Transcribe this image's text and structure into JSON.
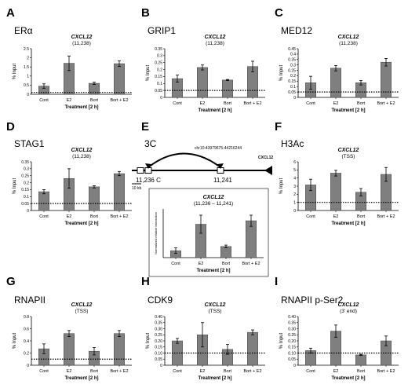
{
  "panels": [
    {
      "letter": "A",
      "name": "ERα"
    },
    {
      "letter": "B",
      "name": "GRIP1"
    },
    {
      "letter": "C",
      "name": "MED12"
    },
    {
      "letter": "D",
      "name": "STAG1"
    },
    {
      "letter": "E",
      "name": "3C"
    },
    {
      "letter": "F",
      "name": "H3Ac"
    },
    {
      "letter": "G",
      "name": "RNAPII"
    },
    {
      "letter": "H",
      "name": "CDK9"
    },
    {
      "letter": "I",
      "name": "RNAPII p-Ser2"
    }
  ],
  "locus": {
    "coord": "chr10:43979675-44216244",
    "gene": "CXCL12",
    "left_label": "11,236 C",
    "right_label": "11,241",
    "scale": "10 kb"
  },
  "chart_data": [
    {
      "panel": "A",
      "type": "bar",
      "title": "CXCL12",
      "subtitle": "(11,238)",
      "ylabel": "% Input",
      "xlabel": "Treatment [2 h]",
      "categories": [
        "Cont",
        "E2",
        "Bort",
        "Bort + E2"
      ],
      "values": [
        0.45,
        1.7,
        0.6,
        1.68
      ],
      "errors": [
        0.12,
        0.4,
        0.06,
        0.15
      ],
      "ylim": [
        0,
        2.5
      ],
      "yticks": [
        "0",
        "0.5",
        "1",
        "1.5",
        "2",
        "2.5"
      ],
      "baseline": 0.1,
      "show_ticks": false
    },
    {
      "panel": "B",
      "type": "bar",
      "title": "CXCL12",
      "subtitle": "(11,238)",
      "ylabel": "% Input",
      "xlabel": "Treatment [2 h]",
      "categories": [
        "Cont",
        "E2",
        "Bort",
        "Bort + E2"
      ],
      "values": [
        0.135,
        0.215,
        0.125,
        0.222
      ],
      "errors": [
        0.025,
        0.018,
        0.004,
        0.038
      ],
      "ylim": [
        0,
        0.35
      ],
      "yticks": [
        "0",
        "0.05",
        "0.1",
        "0.15",
        "0.2",
        "0.25",
        "0.3",
        "0.35"
      ],
      "baseline": 0.05,
      "show_ticks": true
    },
    {
      "panel": "C",
      "type": "bar",
      "title": "CXCL12",
      "subtitle": "(11,238)",
      "ylabel": "% Input",
      "xlabel": "Treatment [2 h]",
      "categories": [
        "Cont",
        "E2",
        "Bort",
        "Bort + E2"
      ],
      "values": [
        0.135,
        0.27,
        0.135,
        0.325
      ],
      "errors": [
        0.06,
        0.025,
        0.02,
        0.035
      ],
      "ylim": [
        0,
        0.45
      ],
      "yticks": [
        "0",
        "0.05",
        "0.1",
        "0.15",
        "0.2",
        "0.25",
        "0.3",
        "0.35",
        "0.4",
        "0.45"
      ],
      "baseline": 0.05,
      "show_ticks": true
    },
    {
      "panel": "D",
      "type": "bar",
      "title": "CXCL12",
      "subtitle": "(11,238)",
      "ylabel": "% Input",
      "xlabel": "Treatment [2 h]",
      "categories": [
        "Cont",
        "E2",
        "Bort",
        "Bort + E2"
      ],
      "values": [
        0.135,
        0.23,
        0.17,
        0.265
      ],
      "errors": [
        0.015,
        0.07,
        0.008,
        0.015
      ],
      "ylim": [
        0,
        0.35
      ],
      "yticks": [
        "0",
        "0.05",
        "0.1",
        "0.15",
        "0.2",
        "0.25",
        "0.3",
        "0.35"
      ],
      "baseline": 0.05,
      "show_ticks": true
    },
    {
      "panel": "E",
      "type": "bar",
      "title": "CXCL12",
      "subtitle": "(11,236 – 11,241)",
      "ylabel": "Normalized relative interaction",
      "xlabel": "Treatment [2 h]",
      "categories": [
        "Cont",
        "E2",
        "Bort",
        "Bort + E2"
      ],
      "values": [
        1.0,
        4.8,
        1.6,
        5.3
      ],
      "errors": [
        0.4,
        1.3,
        0.2,
        0.8
      ],
      "ylim": [
        0,
        7
      ],
      "yticks": [],
      "baseline": null,
      "show_ticks": false
    },
    {
      "panel": "F",
      "type": "bar",
      "title": "CXCL12",
      "subtitle": "(TSS)",
      "ylabel": "% Input",
      "xlabel": "Treatment [2 h]",
      "categories": [
        "Cont",
        "E2",
        "Bort",
        "Bort + E2"
      ],
      "values": [
        3.15,
        4.6,
        2.25,
        4.45
      ],
      "errors": [
        0.7,
        0.35,
        0.45,
        0.85
      ],
      "ylim": [
        0,
        6
      ],
      "yticks": [
        "0",
        "1",
        "2",
        "3",
        "4",
        "5",
        "6"
      ],
      "baseline": 1,
      "show_ticks": true
    },
    {
      "panel": "G",
      "type": "bar",
      "title": "CXCL12",
      "subtitle": "(TSS)",
      "ylabel": "% Input",
      "xlabel": "Treatment [2 h]",
      "categories": [
        "Cont",
        "E2",
        "Bort",
        "Bort + E2"
      ],
      "values": [
        0.27,
        0.52,
        0.23,
        0.52
      ],
      "errors": [
        0.08,
        0.05,
        0.06,
        0.05
      ],
      "ylim": [
        0,
        0.8
      ],
      "yticks": [
        "0",
        "0.2",
        "0.4",
        "0.6",
        "0.8"
      ],
      "baseline": 0.1,
      "show_ticks": true
    },
    {
      "panel": "H",
      "type": "bar",
      "title": "CXCL12",
      "subtitle": "(TSS)",
      "ylabel": "% Input",
      "xlabel": "Treatment [2 h]",
      "categories": [
        "Cont",
        "E2",
        "Bort",
        "Bort + E2"
      ],
      "values": [
        0.2,
        0.25,
        0.13,
        0.27
      ],
      "errors": [
        0.02,
        0.1,
        0.04,
        0.02
      ],
      "ylim": [
        0,
        0.4
      ],
      "yticks": [
        "0",
        "0.05",
        "0.10",
        "0.15",
        "0.20",
        "0.25",
        "0.30",
        "0.35",
        "0.40"
      ],
      "baseline": 0.1,
      "show_ticks": true
    },
    {
      "panel": "I",
      "type": "bar",
      "title": "CXCL12",
      "subtitle": "(3' end)",
      "ylabel": "% Input",
      "xlabel": "Treatment [2 h]",
      "categories": [
        "Cont",
        "E2",
        "Bort",
        "Bort + E2"
      ],
      "values": [
        0.12,
        0.28,
        0.085,
        0.2
      ],
      "errors": [
        0.02,
        0.05,
        0.005,
        0.04
      ],
      "ylim": [
        0,
        0.4
      ],
      "yticks": [
        "0",
        "0.05",
        "0.10",
        "0.15",
        "0.20",
        "0.25",
        "0.30",
        "0.35",
        "0.40"
      ],
      "baseline": 0.1,
      "show_ticks": true
    }
  ]
}
